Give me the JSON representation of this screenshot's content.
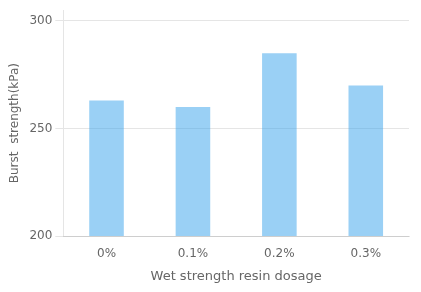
{
  "chart_data": {
    "type": "bar",
    "xlabel": "Wet strength resin dosage",
    "ylabel": "Burst  strength(kPa)",
    "categories": [
      "0%",
      "0.1%",
      "0.2%",
      "0.3%"
    ],
    "values": [
      263,
      260,
      285,
      270
    ],
    "ylim": [
      200,
      305
    ],
    "yticks": [
      200,
      250,
      300
    ],
    "grid": true
  }
}
